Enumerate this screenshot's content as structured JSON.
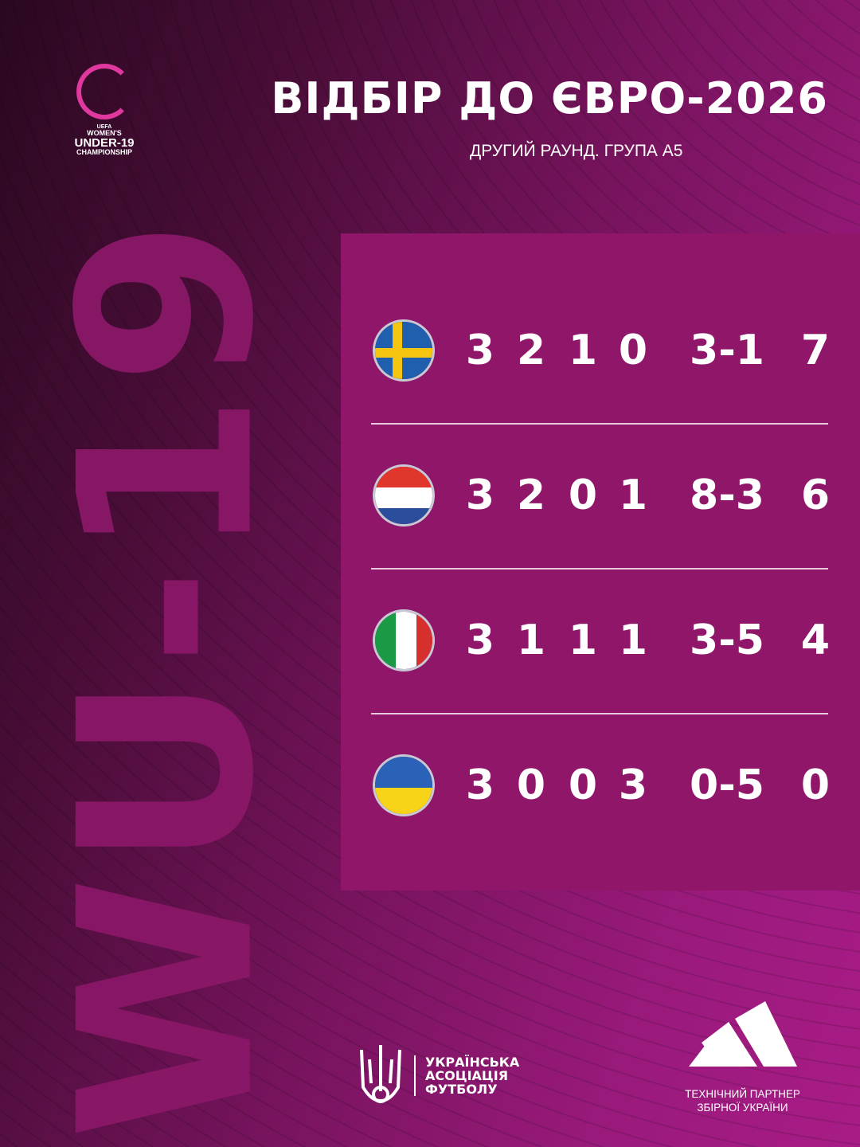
{
  "logo": {
    "uefa": "UEFA",
    "l1": "WOMEN'S",
    "l2": "UNDER-19",
    "l3": "CHAMPIONSHIP"
  },
  "header": {
    "title": "ВІДБІР ДО ЄВРО-2026",
    "subtitle": "ДРУГИЙ РАУНД. ГРУПА А5"
  },
  "side_text": "WU-19",
  "table": {
    "rows": [
      {
        "team": "Sweden",
        "flag": "sweden-flag",
        "cells": [
          "3",
          "2",
          "1",
          "0",
          "3-1",
          "7"
        ]
      },
      {
        "team": "Netherlands",
        "flag": "netherlands-flag",
        "cells": [
          "3",
          "2",
          "0",
          "1",
          "8-3",
          "6"
        ]
      },
      {
        "team": "Italy",
        "flag": "italy-flag",
        "cells": [
          "3",
          "1",
          "1",
          "1",
          "3-5",
          "4"
        ]
      },
      {
        "team": "Ukraine",
        "flag": "ukraine-flag",
        "cells": [
          "3",
          "0",
          "0",
          "3",
          "0-5",
          "0"
        ]
      }
    ]
  },
  "footer": {
    "uaf": [
      "УКРАЇНСЬКА",
      "АСОЦІАЦІЯ",
      "ФУТБОЛУ"
    ],
    "partner": [
      "ТЕХНІЧНИЙ ПАРТНЕР",
      "ЗБІРНОЇ УКРАЇНИ"
    ]
  },
  "colors": {
    "panel": "#8f1668",
    "accent": "#e0389e"
  }
}
